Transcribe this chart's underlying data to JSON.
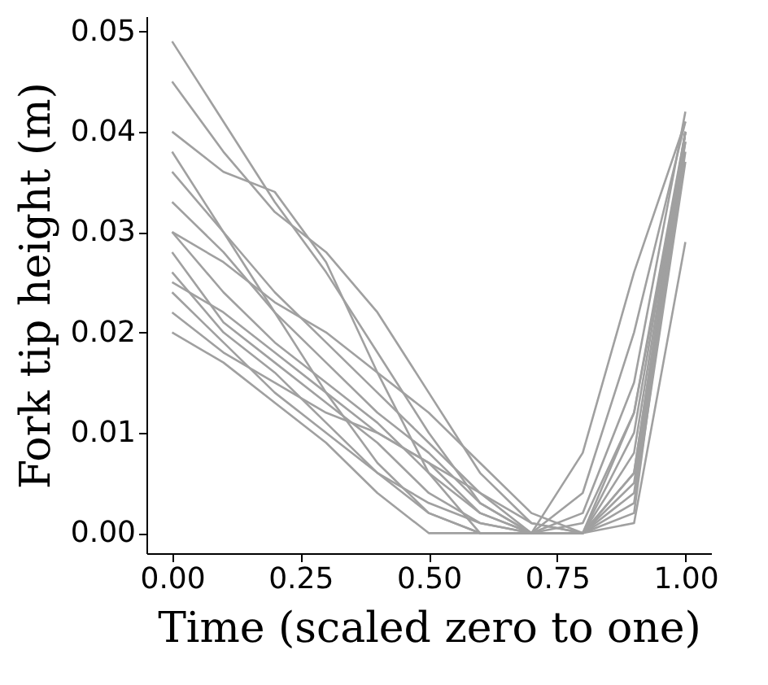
{
  "chart_data": {
    "type": "line",
    "xlabel": "Time (scaled zero to one)",
    "ylabel": "Fork tip height (m)",
    "xlim": [
      -0.05,
      1.05
    ],
    "ylim": [
      -0.002,
      0.0515
    ],
    "xticks": [
      {
        "value": 0,
        "label": "0.00"
      },
      {
        "value": 0.25,
        "label": "0.25"
      },
      {
        "value": 0.5,
        "label": "0.50"
      },
      {
        "value": 0.75,
        "label": "0.75"
      },
      {
        "value": 1,
        "label": "1.00"
      }
    ],
    "yticks": [
      {
        "value": 0,
        "label": "0.00"
      },
      {
        "value": 0.01,
        "label": "0.01"
      },
      {
        "value": 0.02,
        "label": "0.02"
      },
      {
        "value": 0.03,
        "label": "0.03"
      },
      {
        "value": 0.04,
        "label": "0.04"
      },
      {
        "value": 0.05,
        "label": "0.05"
      }
    ],
    "grid": false,
    "legend": false,
    "series": [
      {
        "color": "#a0a0a0",
        "x": [
          0,
          0.1,
          0.2,
          0.3,
          0.4,
          0.5,
          0.6,
          0.7,
          0.8,
          0.9,
          1.0
        ],
        "values": [
          0.049,
          0.041,
          0.033,
          0.026,
          0.018,
          0.01,
          0.003,
          0.0,
          0.004,
          0.02,
          0.041
        ]
      },
      {
        "color": "#a0a0a0",
        "x": [
          0,
          0.1,
          0.2,
          0.3,
          0.4,
          0.5,
          0.6,
          0.7,
          0.8,
          0.9,
          1.0
        ],
        "values": [
          0.045,
          0.038,
          0.032,
          0.028,
          0.022,
          0.014,
          0.006,
          0.001,
          0.0,
          0.012,
          0.039
        ]
      },
      {
        "color": "#a0a0a0",
        "x": [
          0,
          0.1,
          0.2,
          0.3,
          0.4,
          0.5,
          0.6,
          0.7,
          0.8,
          0.9,
          1.0
        ],
        "values": [
          0.04,
          0.036,
          0.034,
          0.027,
          0.016,
          0.006,
          0.0,
          0.0,
          0.008,
          0.026,
          0.041
        ]
      },
      {
        "color": "#a0a0a0",
        "x": [
          0,
          0.1,
          0.2,
          0.3,
          0.4,
          0.5,
          0.6,
          0.7,
          0.8,
          0.9,
          1.0
        ],
        "values": [
          0.036,
          0.03,
          0.024,
          0.019,
          0.014,
          0.009,
          0.004,
          0.0,
          0.0,
          0.01,
          0.04
        ]
      },
      {
        "color": "#a0a0a0",
        "x": [
          0,
          0.1,
          0.2,
          0.3,
          0.4,
          0.5,
          0.6,
          0.7,
          0.8,
          0.9,
          1.0
        ],
        "values": [
          0.033,
          0.028,
          0.022,
          0.017,
          0.012,
          0.008,
          0.003,
          0.0,
          0.0,
          0.005,
          0.039
        ]
      },
      {
        "color": "#a0a0a0",
        "x": [
          0,
          0.1,
          0.2,
          0.3,
          0.4,
          0.5,
          0.6,
          0.7,
          0.8,
          0.9,
          1.0
        ],
        "values": [
          0.03,
          0.024,
          0.019,
          0.015,
          0.011,
          0.006,
          0.002,
          0.0,
          0.0,
          0.008,
          0.04
        ]
      },
      {
        "color": "#a0a0a0",
        "x": [
          0,
          0.1,
          0.2,
          0.3,
          0.4,
          0.5,
          0.6,
          0.7,
          0.8,
          0.9,
          1.0
        ],
        "values": [
          0.028,
          0.021,
          0.017,
          0.013,
          0.009,
          0.004,
          0.001,
          0.0,
          0.0,
          0.004,
          0.038
        ]
      },
      {
        "color": "#a0a0a0",
        "x": [
          0,
          0.1,
          0.2,
          0.3,
          0.4,
          0.5,
          0.6,
          0.7,
          0.8,
          0.9,
          1.0
        ],
        "values": [
          0.026,
          0.02,
          0.016,
          0.011,
          0.006,
          0.002,
          0.0,
          0.0,
          0.001,
          0.012,
          0.04
        ]
      },
      {
        "color": "#a0a0a0",
        "x": [
          0,
          0.1,
          0.2,
          0.3,
          0.4,
          0.5,
          0.6,
          0.7,
          0.8,
          0.9,
          1.0
        ],
        "values": [
          0.025,
          0.022,
          0.018,
          0.014,
          0.01,
          0.007,
          0.004,
          0.001,
          0.0,
          0.006,
          0.04
        ]
      },
      {
        "color": "#a0a0a0",
        "x": [
          0,
          0.1,
          0.2,
          0.3,
          0.4,
          0.5,
          0.6,
          0.7,
          0.8,
          0.9,
          1.0
        ],
        "values": [
          0.024,
          0.019,
          0.014,
          0.01,
          0.006,
          0.003,
          0.001,
          0.0,
          0.0,
          0.003,
          0.037
        ]
      },
      {
        "color": "#a0a0a0",
        "x": [
          0,
          0.1,
          0.2,
          0.3,
          0.4,
          0.5,
          0.6,
          0.7,
          0.8,
          0.9,
          1.0
        ],
        "values": [
          0.022,
          0.018,
          0.015,
          0.012,
          0.01,
          0.007,
          0.002,
          0.0,
          0.0,
          0.002,
          0.04
        ]
      },
      {
        "color": "#a0a0a0",
        "x": [
          0,
          0.1,
          0.2,
          0.3,
          0.4,
          0.5,
          0.6,
          0.7,
          0.8,
          0.9,
          1.0
        ],
        "values": [
          0.02,
          0.017,
          0.013,
          0.009,
          0.004,
          0.0,
          0.0,
          0.0,
          0.002,
          0.015,
          0.042
        ]
      },
      {
        "color": "#a0a0a0",
        "x": [
          0,
          0.1,
          0.2,
          0.3,
          0.4,
          0.5,
          0.6,
          0.7,
          0.8,
          0.9,
          1.0
        ],
        "values": [
          0.03,
          0.027,
          0.023,
          0.02,
          0.016,
          0.012,
          0.007,
          0.002,
          0.0,
          0.001,
          0.029
        ]
      },
      {
        "color": "#a0a0a0",
        "x": [
          0,
          0.1,
          0.2,
          0.3,
          0.4,
          0.5,
          0.6,
          0.7,
          0.8,
          0.9,
          1.0
        ],
        "values": [
          0.038,
          0.03,
          0.022,
          0.014,
          0.007,
          0.002,
          0.0,
          0.0,
          0.0,
          0.006,
          0.04
        ]
      }
    ]
  }
}
